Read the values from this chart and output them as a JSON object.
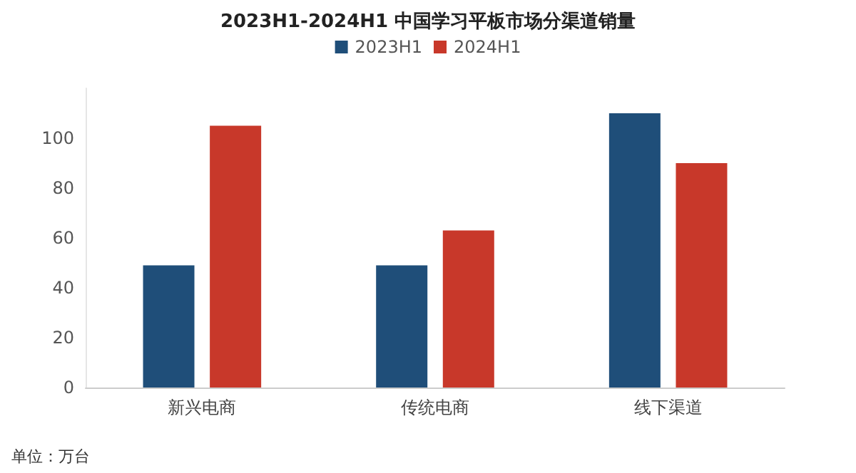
{
  "chart_data": {
    "type": "bar",
    "title": "2023H1-2024H1 中国学习平板市场分渠道销量",
    "categories": [
      "新兴电商",
      "传统电商",
      "线下渠道"
    ],
    "series": [
      {
        "name": "2023H1",
        "color": "#1f4e79",
        "values": [
          49,
          49,
          110
        ]
      },
      {
        "name": "2024H1",
        "color": "#c8382a",
        "values": [
          105,
          63,
          90
        ]
      }
    ],
    "ylim": [
      0,
      120
    ],
    "yticks": [
      0,
      20,
      40,
      60,
      80,
      100
    ],
    "grid": false,
    "legend": "top",
    "annotations": [
      "单位：万台"
    ]
  }
}
